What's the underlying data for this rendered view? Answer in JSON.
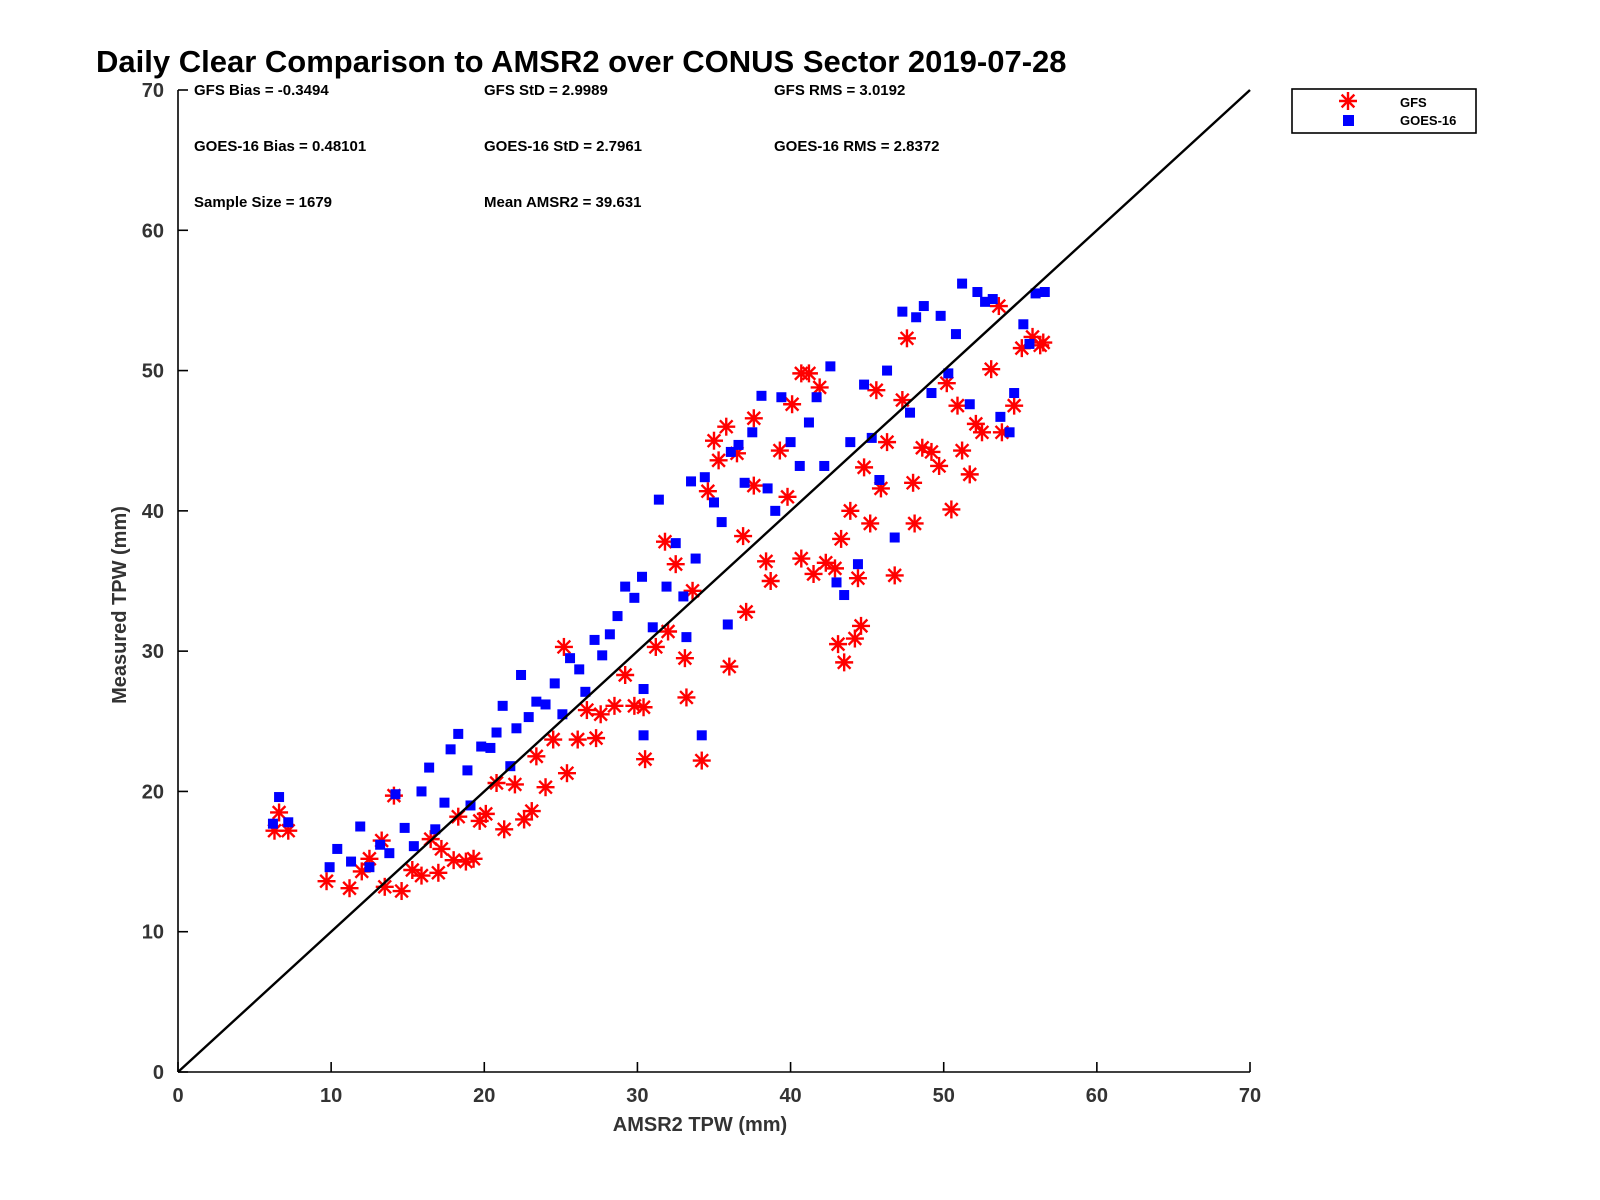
{
  "chart_data": {
    "type": "scatter",
    "title": "Daily Clear Comparison to AMSR2 over CONUS Sector 2019-07-28",
    "xlabel": "AMSR2 TPW (mm)",
    "ylabel": "Measured TPW (mm)",
    "xlim": [
      0,
      70
    ],
    "ylim": [
      0,
      70
    ],
    "xticks": [
      0,
      10,
      20,
      30,
      40,
      50,
      60,
      70
    ],
    "yticks": [
      0,
      10,
      20,
      30,
      40,
      50,
      60,
      70
    ],
    "legend_position": "top-right outside",
    "reference_line": "y = x",
    "stats": [
      {
        "id": "gfs-bias",
        "text": "GFS Bias = -0.3494"
      },
      {
        "id": "gfs-std",
        "text": "GFS StD = 2.9989"
      },
      {
        "id": "gfs-rms",
        "text": "GFS RMS = 3.0192"
      },
      {
        "id": "goes-bias",
        "text": "GOES-16 Bias = 0.48101"
      },
      {
        "id": "goes-std",
        "text": "GOES-16 StD = 2.7961"
      },
      {
        "id": "goes-rms",
        "text": "GOES-16 RMS = 2.8372"
      },
      {
        "id": "sample-size",
        "text": "Sample Size = 1679"
      },
      {
        "id": "mean-amsr2",
        "text": "Mean AMSR2 = 39.631"
      }
    ],
    "series": [
      {
        "name": "GFS",
        "color": "#ff0000",
        "marker": "asterisk",
        "points": [
          [
            6.3,
            17.2
          ],
          [
            6.6,
            18.5
          ],
          [
            7.2,
            17.2
          ],
          [
            9.7,
            13.6
          ],
          [
            11.2,
            13.1
          ],
          [
            12.0,
            14.3
          ],
          [
            12.5,
            15.2
          ],
          [
            13.3,
            16.5
          ],
          [
            13.5,
            13.2
          ],
          [
            14.1,
            19.7
          ],
          [
            14.6,
            12.9
          ],
          [
            15.3,
            14.4
          ],
          [
            15.9,
            14.0
          ],
          [
            16.5,
            16.6
          ],
          [
            17.0,
            14.2
          ],
          [
            17.2,
            15.9
          ],
          [
            18.0,
            15.1
          ],
          [
            18.3,
            18.2
          ],
          [
            18.8,
            15.0
          ],
          [
            19.3,
            15.2
          ],
          [
            19.7,
            17.9
          ],
          [
            20.1,
            18.4
          ],
          [
            20.8,
            20.6
          ],
          [
            21.3,
            17.3
          ],
          [
            22.0,
            20.5
          ],
          [
            22.6,
            18.0
          ],
          [
            23.1,
            18.6
          ],
          [
            23.4,
            22.5
          ],
          [
            24.0,
            20.3
          ],
          [
            24.5,
            23.7
          ],
          [
            25.4,
            21.3
          ],
          [
            25.2,
            30.3
          ],
          [
            26.1,
            23.7
          ],
          [
            26.7,
            25.8
          ],
          [
            27.3,
            23.8
          ],
          [
            27.6,
            25.5
          ],
          [
            28.5,
            26.1
          ],
          [
            29.2,
            28.3
          ],
          [
            29.8,
            26.1
          ],
          [
            30.4,
            26.0
          ],
          [
            30.5,
            22.3
          ],
          [
            31.2,
            30.3
          ],
          [
            31.8,
            37.8
          ],
          [
            32.0,
            31.4
          ],
          [
            32.5,
            36.2
          ],
          [
            33.1,
            29.5
          ],
          [
            33.2,
            26.7
          ],
          [
            33.6,
            34.3
          ],
          [
            34.2,
            22.2
          ],
          [
            34.6,
            41.4
          ],
          [
            35.0,
            45.0
          ],
          [
            35.3,
            43.6
          ],
          [
            35.8,
            46.0
          ],
          [
            36.0,
            28.9
          ],
          [
            36.5,
            44.1
          ],
          [
            36.9,
            38.2
          ],
          [
            37.1,
            32.8
          ],
          [
            37.6,
            41.8
          ],
          [
            37.6,
            46.6
          ],
          [
            38.4,
            36.4
          ],
          [
            38.7,
            35.0
          ],
          [
            39.3,
            44.3
          ],
          [
            39.8,
            41.0
          ],
          [
            40.1,
            47.6
          ],
          [
            40.7,
            36.6
          ],
          [
            40.7,
            49.8
          ],
          [
            41.2,
            49.8
          ],
          [
            41.5,
            35.5
          ],
          [
            41.9,
            48.8
          ],
          [
            42.3,
            36.3
          ],
          [
            42.9,
            35.9
          ],
          [
            43.1,
            30.5
          ],
          [
            43.3,
            38.0
          ],
          [
            43.5,
            29.2
          ],
          [
            43.9,
            40.0
          ],
          [
            44.2,
            30.9
          ],
          [
            44.4,
            35.2
          ],
          [
            44.6,
            31.8
          ],
          [
            44.8,
            43.1
          ],
          [
            45.2,
            39.1
          ],
          [
            45.6,
            48.6
          ],
          [
            45.9,
            41.6
          ],
          [
            46.3,
            44.9
          ],
          [
            46.8,
            35.4
          ],
          [
            47.3,
            47.9
          ],
          [
            47.6,
            52.3
          ],
          [
            48.0,
            42.0
          ],
          [
            48.1,
            39.1
          ],
          [
            48.6,
            44.5
          ],
          [
            49.2,
            44.2
          ],
          [
            49.7,
            43.2
          ],
          [
            50.2,
            49.1
          ],
          [
            50.5,
            40.1
          ],
          [
            50.9,
            47.5
          ],
          [
            51.2,
            44.3
          ],
          [
            51.7,
            42.6
          ],
          [
            52.1,
            46.2
          ],
          [
            52.5,
            45.6
          ],
          [
            53.1,
            50.1
          ],
          [
            53.6,
            54.6
          ],
          [
            53.8,
            45.6
          ],
          [
            54.6,
            47.5
          ],
          [
            55.1,
            51.6
          ],
          [
            55.8,
            52.4
          ],
          [
            56.3,
            51.8
          ],
          [
            56.5,
            52.0
          ]
        ]
      },
      {
        "name": "GOES-16",
        "color": "#0000ff",
        "marker": "square",
        "points": [
          [
            6.2,
            17.7
          ],
          [
            6.6,
            19.6
          ],
          [
            7.2,
            17.8
          ],
          [
            9.9,
            14.6
          ],
          [
            10.4,
            15.9
          ],
          [
            11.3,
            15.0
          ],
          [
            11.9,
            17.5
          ],
          [
            12.5,
            14.6
          ],
          [
            13.2,
            16.2
          ],
          [
            13.8,
            15.6
          ],
          [
            14.2,
            19.8
          ],
          [
            14.8,
            17.4
          ],
          [
            15.4,
            16.1
          ],
          [
            15.9,
            20.0
          ],
          [
            16.4,
            21.7
          ],
          [
            16.8,
            17.3
          ],
          [
            17.4,
            19.2
          ],
          [
            17.8,
            23.0
          ],
          [
            18.3,
            24.1
          ],
          [
            18.9,
            21.5
          ],
          [
            19.1,
            19.0
          ],
          [
            19.8,
            23.2
          ],
          [
            20.4,
            23.1
          ],
          [
            20.8,
            24.2
          ],
          [
            21.2,
            26.1
          ],
          [
            21.7,
            21.8
          ],
          [
            22.1,
            24.5
          ],
          [
            22.4,
            28.3
          ],
          [
            22.9,
            25.3
          ],
          [
            23.4,
            26.4
          ],
          [
            24.0,
            26.2
          ],
          [
            24.6,
            27.7
          ],
          [
            25.1,
            25.5
          ],
          [
            25.6,
            29.5
          ],
          [
            26.2,
            28.7
          ],
          [
            26.6,
            27.1
          ],
          [
            27.2,
            30.8
          ],
          [
            27.7,
            29.7
          ],
          [
            28.2,
            31.2
          ],
          [
            28.7,
            32.5
          ],
          [
            29.2,
            34.6
          ],
          [
            29.8,
            33.8
          ],
          [
            30.3,
            35.3
          ],
          [
            30.4,
            24.0
          ],
          [
            30.4,
            27.3
          ],
          [
            31.0,
            31.7
          ],
          [
            31.4,
            40.8
          ],
          [
            31.9,
            34.6
          ],
          [
            32.5,
            37.7
          ],
          [
            33.0,
            33.9
          ],
          [
            33.2,
            31.0
          ],
          [
            33.5,
            42.1
          ],
          [
            33.8,
            36.6
          ],
          [
            34.2,
            24.0
          ],
          [
            34.4,
            42.4
          ],
          [
            35.0,
            40.6
          ],
          [
            35.5,
            39.2
          ],
          [
            35.9,
            31.9
          ],
          [
            36.1,
            44.2
          ],
          [
            36.6,
            44.7
          ],
          [
            37.0,
            42.0
          ],
          [
            37.5,
            45.6
          ],
          [
            38.1,
            48.2
          ],
          [
            38.5,
            41.6
          ],
          [
            39.0,
            40.0
          ],
          [
            39.4,
            48.1
          ],
          [
            40.0,
            44.9
          ],
          [
            40.6,
            43.2
          ],
          [
            41.2,
            46.3
          ],
          [
            41.7,
            48.1
          ],
          [
            42.2,
            43.2
          ],
          [
            42.6,
            50.3
          ],
          [
            43.0,
            34.9
          ],
          [
            43.5,
            34.0
          ],
          [
            43.9,
            44.9
          ],
          [
            44.4,
            36.2
          ],
          [
            44.8,
            49.0
          ],
          [
            45.3,
            45.2
          ],
          [
            45.8,
            42.2
          ],
          [
            46.3,
            50.0
          ],
          [
            46.8,
            38.1
          ],
          [
            47.3,
            54.2
          ],
          [
            47.8,
            47.0
          ],
          [
            48.2,
            53.8
          ],
          [
            48.7,
            54.6
          ],
          [
            49.2,
            48.4
          ],
          [
            49.8,
            53.9
          ],
          [
            50.3,
            49.8
          ],
          [
            50.8,
            52.6
          ],
          [
            51.2,
            56.2
          ],
          [
            51.7,
            47.6
          ],
          [
            52.2,
            55.6
          ],
          [
            52.7,
            54.9
          ],
          [
            53.2,
            55.1
          ],
          [
            53.7,
            46.7
          ],
          [
            54.3,
            45.6
          ],
          [
            54.6,
            48.4
          ],
          [
            55.2,
            53.3
          ],
          [
            55.6,
            51.9
          ],
          [
            56.0,
            55.5
          ],
          [
            56.6,
            55.6
          ]
        ]
      }
    ]
  }
}
